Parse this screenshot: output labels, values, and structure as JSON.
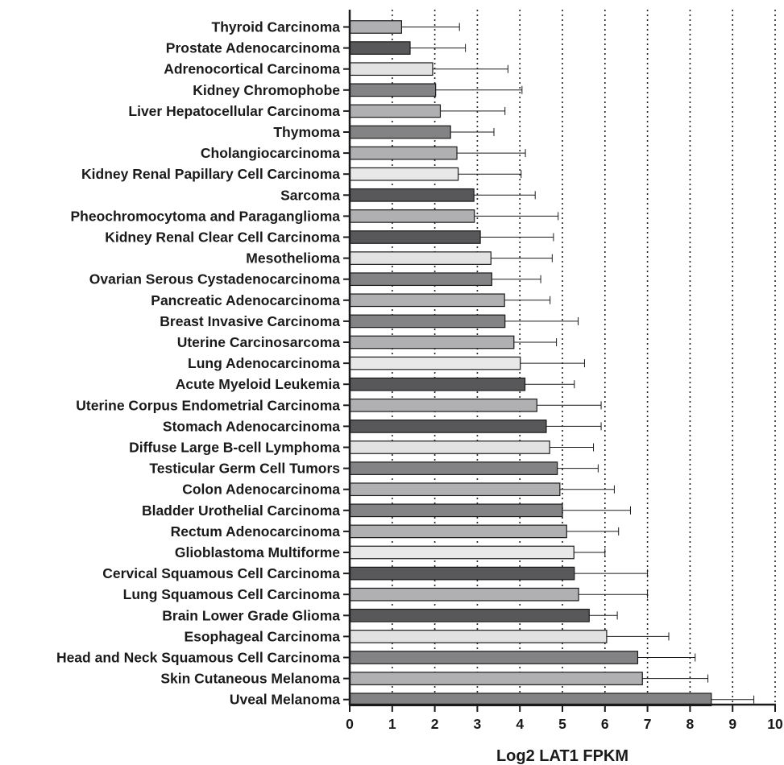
{
  "chart_data": {
    "type": "bar",
    "orientation": "horizontal",
    "xlabel": "Log2 LAT1 FPKM",
    "ylabel": "",
    "xlim": [
      0,
      10
    ],
    "x_ticks": [
      0,
      1,
      2,
      3,
      4,
      5,
      6,
      7,
      8,
      9,
      10
    ],
    "grid": "vertical dotted lines at each integer",
    "error_bars": "one-sided (upper)",
    "categories": [
      "Thyroid Carcinoma",
      "Prostate Adenocarcinoma",
      "Adrenocortical Carcinoma",
      "Kidney Chromophobe",
      "Liver Hepatocellular Carcinoma",
      "Thymoma",
      "Cholangiocarcinoma",
      "Kidney Renal Papillary Cell Carcinoma",
      "Sarcoma",
      "Pheochromocytoma and Paraganglioma",
      "Kidney Renal Clear Cell Carcinoma",
      "Mesothelioma",
      "Ovarian Serous Cystadenocarcinoma",
      "Pancreatic Adenocarcinoma",
      "Breast Invasive Carcinoma",
      "Uterine Carcinosarcoma",
      "Lung Adenocarcinoma",
      "Acute Myeloid Leukemia",
      "Uterine Corpus Endometrial Carcinoma",
      "Stomach Adenocarcinoma",
      "Diffuse Large B-cell Lymphoma",
      "Testicular Germ Cell Tumors",
      "Colon Adenocarcinoma",
      "Bladder Urothelial Carcinoma",
      "Rectum Adenocarcinoma",
      "Glioblastoma Multiforme",
      "Cervical Squamous Cell Carcinoma",
      "Lung Squamous Cell Carcinoma",
      "Brain Lower Grade Glioma",
      "Esophageal Carcinoma",
      "Head and Neck Squamous Cell Carcinoma",
      "Skin Cutaneous Melanoma",
      "Uveal Melanoma"
    ],
    "values": [
      1.22,
      1.42,
      1.95,
      2.02,
      2.13,
      2.37,
      2.52,
      2.55,
      2.92,
      2.93,
      3.07,
      3.32,
      3.34,
      3.64,
      3.65,
      3.86,
      4.01,
      4.12,
      4.4,
      4.62,
      4.7,
      4.88,
      4.94,
      5.0,
      5.1,
      5.27,
      5.28,
      5.38,
      5.63,
      6.04,
      6.77,
      6.88,
      8.5
    ],
    "error_upper": [
      2.58,
      2.72,
      3.72,
      4.05,
      3.65,
      3.39,
      4.13,
      4.03,
      4.36,
      4.9,
      4.79,
      4.76,
      4.49,
      4.71,
      5.37,
      4.86,
      5.52,
      5.28,
      5.91,
      5.91,
      5.73,
      5.84,
      6.22,
      6.6,
      6.32,
      6.0,
      7.0,
      7.0,
      6.29,
      7.5,
      8.12,
      8.42,
      9.5
    ],
    "bar_colors": [
      "#b0b0b2",
      "#58585a",
      "#e2e2e2",
      "#838385",
      "#b0b0b2",
      "#838385",
      "#b0b0b2",
      "#e8e8e8",
      "#58585a",
      "#b0b0b2",
      "#58585a",
      "#e2e2e2",
      "#838385",
      "#b0b0b2",
      "#838385",
      "#b0b0b2",
      "#e8e8e8",
      "#58585a",
      "#b0b0b2",
      "#58585a",
      "#e2e2e2",
      "#838385",
      "#b0b0b2",
      "#838385",
      "#b0b0b2",
      "#e8e8e8",
      "#58585a",
      "#b0b0b2",
      "#58585a",
      "#e2e2e2",
      "#838385",
      "#b0b0b2",
      "#838385"
    ]
  }
}
